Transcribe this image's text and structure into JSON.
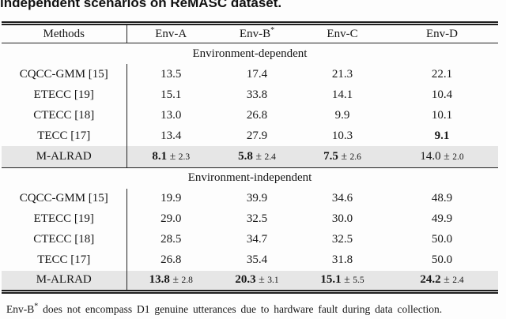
{
  "caption": "independent scenarios on ReMASC dataset.",
  "colors": {
    "highlight_row_bg": "#e6e6e6",
    "rule_color": "#1f1f1f",
    "text_color": "#161616"
  },
  "table": {
    "col_headers": [
      "Methods",
      "Env-A",
      "Env-B",
      "Env-C",
      "Env-D"
    ],
    "env_b_superscript": "*",
    "sections": [
      {
        "title": "Environment-dependent",
        "rows": [
          {
            "method": "CQCC-GMM [15]",
            "highlight": false,
            "cells": [
              {
                "v": "13.5",
                "bold": false
              },
              {
                "v": "17.4",
                "bold": false
              },
              {
                "v": "21.3",
                "bold": false
              },
              {
                "v": "22.1",
                "bold": false
              }
            ]
          },
          {
            "method": "ETECC [19]",
            "highlight": false,
            "cells": [
              {
                "v": "15.1",
                "bold": false
              },
              {
                "v": "33.8",
                "bold": false
              },
              {
                "v": "14.1",
                "bold": false
              },
              {
                "v": "10.4",
                "bold": false
              }
            ]
          },
          {
            "method": "CTECC [18]",
            "highlight": false,
            "cells": [
              {
                "v": "13.0",
                "bold": false
              },
              {
                "v": "26.8",
                "bold": false
              },
              {
                "v": "9.9",
                "bold": false
              },
              {
                "v": "10.1",
                "bold": false
              }
            ]
          },
          {
            "method": "TECC [17]",
            "highlight": false,
            "cells": [
              {
                "v": "13.4",
                "bold": false
              },
              {
                "v": "27.9",
                "bold": false
              },
              {
                "v": "10.3",
                "bold": false
              },
              {
                "v": "9.1",
                "bold": true
              }
            ]
          },
          {
            "method": "M-ALRAD",
            "highlight": true,
            "cells": [
              {
                "v": "8.1",
                "pm": "2.3",
                "bold": true
              },
              {
                "v": "5.8",
                "pm": "2.4",
                "bold": true
              },
              {
                "v": "7.5",
                "pm": "2.6",
                "bold": true
              },
              {
                "v": "14.0",
                "pm": "2.0",
                "bold": false
              }
            ]
          }
        ]
      },
      {
        "title": "Environment-independent",
        "rows": [
          {
            "method": "CQCC-GMM [15]",
            "highlight": false,
            "cells": [
              {
                "v": "19.9",
                "bold": false
              },
              {
                "v": "39.9",
                "bold": false
              },
              {
                "v": "34.6",
                "bold": false
              },
              {
                "v": "48.9",
                "bold": false
              }
            ]
          },
          {
            "method": "ETECC [19]",
            "highlight": false,
            "cells": [
              {
                "v": "29.0",
                "bold": false
              },
              {
                "v": "32.5",
                "bold": false
              },
              {
                "v": "30.0",
                "bold": false
              },
              {
                "v": "49.9",
                "bold": false
              }
            ]
          },
          {
            "method": "CTECC [18]",
            "highlight": false,
            "cells": [
              {
                "v": "28.5",
                "bold": false
              },
              {
                "v": "34.7",
                "bold": false
              },
              {
                "v": "32.5",
                "bold": false
              },
              {
                "v": "50.0",
                "bold": false
              }
            ]
          },
          {
            "method": "TECC [17]",
            "highlight": false,
            "cells": [
              {
                "v": "26.8",
                "bold": false
              },
              {
                "v": "35.4",
                "bold": false
              },
              {
                "v": "31.8",
                "bold": false
              },
              {
                "v": "50.0",
                "bold": false
              }
            ]
          },
          {
            "method": "M-ALRAD",
            "highlight": true,
            "cells": [
              {
                "v": "13.8",
                "pm": "2.8",
                "bold": true
              },
              {
                "v": "20.3",
                "pm": "3.1",
                "bold": true
              },
              {
                "v": "15.1",
                "pm": "5.5",
                "bold": true
              },
              {
                "v": "24.2",
                "pm": "2.4",
                "bold": true
              }
            ]
          }
        ]
      }
    ]
  },
  "footnote": {
    "prefix": "Env-B",
    "sup": "*",
    "text": "does not encompass D1 genuine utterances due to hardware fault during data collection."
  },
  "chart_data": {
    "type": "table",
    "title": "independent scenarios on ReMASC dataset.",
    "columns": [
      "Methods",
      "Env-A",
      "Env-B*",
      "Env-C",
      "Env-D"
    ],
    "groups": {
      "Environment-dependent": {
        "CQCC-GMM [15]": [
          13.5,
          17.4,
          21.3,
          22.1
        ],
        "ETECC [19]": [
          15.1,
          33.8,
          14.1,
          10.4
        ],
        "CTECC [18]": [
          13.0,
          26.8,
          9.9,
          10.1
        ],
        "TECC [17]": [
          13.4,
          27.9,
          10.3,
          9.1
        ],
        "M-ALRAD": [
          "8.1±2.3",
          "5.8±2.4",
          "7.5±2.6",
          "14.0±2.0"
        ]
      },
      "Environment-independent": {
        "CQCC-GMM [15]": [
          19.9,
          39.9,
          34.6,
          48.9
        ],
        "ETECC [19]": [
          29.0,
          32.5,
          30.0,
          49.9
        ],
        "CTECC [18]": [
          28.5,
          34.7,
          32.5,
          50.0
        ],
        "TECC [17]": [
          26.8,
          35.4,
          31.8,
          50.0
        ],
        "M-ALRAD": [
          "13.8±2.8",
          "20.3±3.1",
          "15.1±5.5",
          "24.2±2.4"
        ]
      }
    }
  }
}
